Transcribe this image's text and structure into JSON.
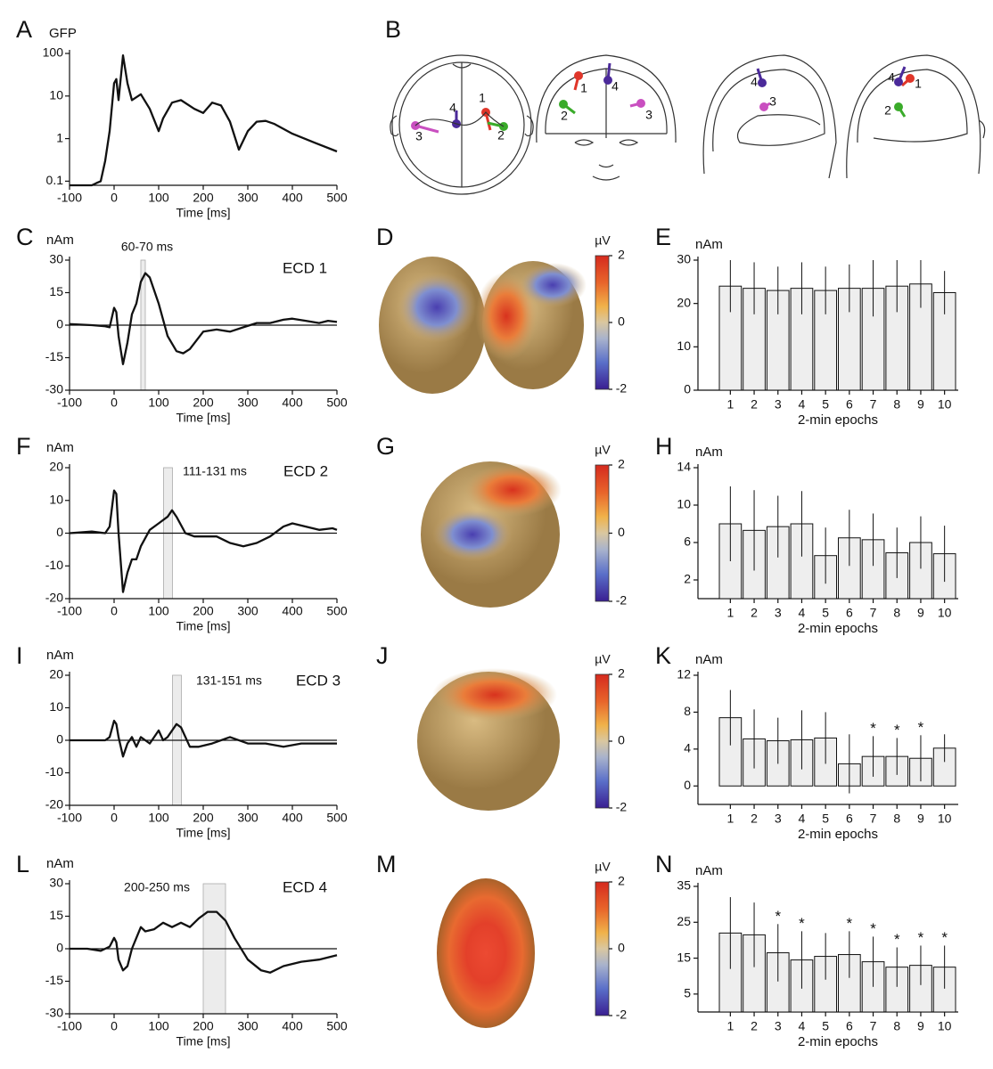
{
  "panel_b": {
    "panel": "B",
    "views": [
      {
        "labels": [
          "1",
          "2",
          "3",
          "4"
        ]
      },
      {
        "labels": [
          "1",
          "2",
          "3",
          "4"
        ]
      },
      {
        "labels": [
          "3",
          "4"
        ]
      },
      {
        "labels": [
          "1",
          "2",
          "4"
        ]
      }
    ]
  },
  "chart_data": [
    {
      "panel": "A",
      "type": "line",
      "ylabel": "GFP",
      "xlabel": "Time [ms]",
      "yscale": "log",
      "color": "#111111",
      "xlim": [
        -100,
        500
      ],
      "xticks": [
        -100,
        0,
        100,
        200,
        300,
        400,
        500
      ],
      "ylim": [
        0.08,
        100
      ],
      "yticks": [
        0.1,
        1,
        10,
        100
      ],
      "x": [
        -100,
        -50,
        -40,
        -30,
        -20,
        -10,
        0,
        5,
        10,
        20,
        30,
        40,
        60,
        80,
        100,
        110,
        130,
        150,
        180,
        200,
        220,
        240,
        260,
        280,
        300,
        320,
        340,
        360,
        400,
        450,
        500
      ],
      "values": [
        0.08,
        0.08,
        0.09,
        0.1,
        0.3,
        1.5,
        20,
        25,
        8,
        90,
        20,
        8,
        11,
        5,
        1.5,
        3,
        7,
        8,
        5,
        4,
        7,
        6,
        2.5,
        0.55,
        1.5,
        2.5,
        2.6,
        2.2,
        1.3,
        0.8,
        0.5
      ]
    },
    {
      "panel": "C",
      "type": "line",
      "ylabel": "nAm",
      "xlabel": "Time [ms]",
      "color": "#111111",
      "label": "ECD 1",
      "window": [
        60,
        70
      ],
      "window_label": "60-70 ms",
      "xlim": [
        -100,
        500
      ],
      "xticks": [
        -100,
        0,
        100,
        200,
        300,
        400,
        500
      ],
      "ylim": [
        -30,
        30
      ],
      "yticks": [
        -30,
        -15,
        0,
        15,
        30
      ],
      "x": [
        -100,
        -50,
        -20,
        -10,
        0,
        5,
        10,
        20,
        30,
        40,
        50,
        60,
        70,
        80,
        100,
        120,
        140,
        155,
        170,
        200,
        230,
        260,
        290,
        320,
        350,
        380,
        400,
        430,
        460,
        480,
        500
      ],
      "values": [
        0.5,
        0,
        -0.5,
        -1,
        8,
        6,
        -5,
        -18,
        -8,
        5,
        10,
        20,
        24,
        22,
        10,
        -5,
        -12,
        -13,
        -11,
        -3,
        -2,
        -3,
        -1,
        1,
        1,
        2.5,
        3,
        2,
        1,
        2,
        1.5
      ]
    },
    {
      "panel": "D",
      "type": "topomap",
      "unit": "µV",
      "clim": [
        -2,
        2
      ],
      "ticks": [
        2,
        0,
        -2
      ]
    },
    {
      "panel": "E",
      "type": "bar",
      "ylabel": "nAm",
      "xlabel": "2-min epochs",
      "color": "#eeeeee",
      "ylim": [
        0,
        30
      ],
      "yticks": [
        0,
        10,
        20,
        30
      ],
      "categories": [
        "1",
        "2",
        "3",
        "4",
        "5",
        "6",
        "7",
        "8",
        "9",
        "10"
      ],
      "values": [
        24,
        23.5,
        23,
        23.5,
        23,
        23.5,
        23.5,
        24,
        24.5,
        22.5
      ],
      "errors": [
        6,
        6,
        5.5,
        6,
        5.5,
        5.5,
        6.5,
        6,
        5.5,
        5
      ]
    },
    {
      "panel": "F",
      "type": "line",
      "ylabel": "nAm",
      "xlabel": "Time [ms]",
      "color": "#111111",
      "label": "ECD 2",
      "window": [
        111,
        131
      ],
      "window_label": "111-131 ms",
      "xlim": [
        -100,
        500
      ],
      "xticks": [
        -100,
        0,
        100,
        200,
        300,
        400,
        500
      ],
      "ylim": [
        -20,
        20
      ],
      "yticks": [
        -20,
        -10,
        0,
        10,
        20
      ],
      "x": [
        -100,
        -50,
        -20,
        -10,
        0,
        5,
        10,
        20,
        30,
        40,
        50,
        60,
        80,
        100,
        120,
        130,
        140,
        160,
        180,
        200,
        230,
        260,
        290,
        320,
        350,
        380,
        400,
        430,
        460,
        490,
        500
      ],
      "values": [
        0,
        0.5,
        0,
        2,
        13,
        12,
        0,
        -18,
        -12,
        -8,
        -8,
        -4,
        1,
        3,
        5,
        7,
        5,
        0,
        -1,
        -1,
        -1,
        -3,
        -4,
        -3,
        -1,
        2,
        3,
        2,
        1,
        1.5,
        1
      ]
    },
    {
      "panel": "G",
      "type": "topomap",
      "unit": "µV",
      "clim": [
        -2,
        2
      ],
      "ticks": [
        2,
        0,
        -2
      ]
    },
    {
      "panel": "H",
      "type": "bar",
      "ylabel": "nAm",
      "xlabel": "2-min epochs",
      "color": "#eeeeee",
      "ylim": [
        0,
        14
      ],
      "yticks": [
        2,
        6,
        10,
        14
      ],
      "categories": [
        "1",
        "2",
        "3",
        "4",
        "5",
        "6",
        "7",
        "8",
        "9",
        "10"
      ],
      "values": [
        8,
        7.3,
        7.7,
        8,
        4.6,
        6.5,
        6.3,
        4.9,
        6,
        4.8
      ],
      "errors": [
        4,
        4.3,
        3.3,
        3.5,
        3,
        3,
        2.8,
        2.7,
        2.8,
        3
      ]
    },
    {
      "panel": "I",
      "type": "line",
      "ylabel": "nAm",
      "xlabel": "Time [ms]",
      "color": "#111111",
      "label": "ECD 3",
      "window": [
        131,
        151
      ],
      "window_label": "131-151 ms",
      "xlim": [
        -100,
        500
      ],
      "xticks": [
        -100,
        0,
        100,
        200,
        300,
        400,
        500
      ],
      "ylim": [
        -20,
        20
      ],
      "yticks": [
        -20,
        -10,
        0,
        10,
        20
      ],
      "x": [
        -100,
        -50,
        -20,
        -10,
        0,
        5,
        10,
        20,
        30,
        40,
        50,
        60,
        70,
        80,
        100,
        110,
        120,
        140,
        150,
        170,
        190,
        220,
        260,
        300,
        340,
        380,
        420,
        460,
        500
      ],
      "values": [
        0,
        0,
        0,
        1,
        6,
        5,
        1,
        -5,
        -1,
        1,
        -2,
        1,
        0,
        -1,
        3,
        0,
        1,
        5,
        4,
        -2,
        -2,
        -1,
        1,
        -1,
        -1,
        -2,
        -1,
        -1,
        -1
      ]
    },
    {
      "panel": "J",
      "type": "topomap",
      "unit": "µV",
      "clim": [
        -2,
        2
      ],
      "ticks": [
        2,
        0,
        -2
      ]
    },
    {
      "panel": "K",
      "type": "bar",
      "ylabel": "nAm",
      "xlabel": "2-min epochs",
      "color": "#eeeeee",
      "ylim": [
        -2,
        12
      ],
      "yticks": [
        0,
        4,
        8,
        12
      ],
      "categories": [
        "1",
        "2",
        "3",
        "4",
        "5",
        "6",
        "7",
        "8",
        "9",
        "10"
      ],
      "values": [
        7.4,
        5.1,
        4.9,
        5,
        5.2,
        2.4,
        3.2,
        3.2,
        3,
        4.1
      ],
      "errors": [
        3,
        3.2,
        2.5,
        3.2,
        2.8,
        3.2,
        2.2,
        2,
        2.5,
        1.5
      ],
      "annotations": [
        {
          "category": "7",
          "text": "*"
        },
        {
          "category": "8",
          "text": "*"
        },
        {
          "category": "9",
          "text": "*"
        }
      ]
    },
    {
      "panel": "L",
      "type": "line",
      "ylabel": "nAm",
      "xlabel": "Time [ms]",
      "color": "#111111",
      "label": "ECD 4",
      "window": [
        200,
        250
      ],
      "window_label": "200-250 ms",
      "xlim": [
        -100,
        500
      ],
      "xticks": [
        -100,
        0,
        100,
        200,
        300,
        400,
        500
      ],
      "ylim": [
        -30,
        30
      ],
      "yticks": [
        -30,
        -15,
        0,
        15,
        30
      ],
      "x": [
        -100,
        -60,
        -30,
        -10,
        0,
        5,
        10,
        20,
        30,
        40,
        50,
        60,
        70,
        90,
        110,
        130,
        150,
        170,
        190,
        210,
        230,
        250,
        270,
        300,
        330,
        350,
        380,
        420,
        460,
        500
      ],
      "values": [
        0,
        0,
        -1,
        1,
        5,
        3,
        -5,
        -10,
        -8,
        0,
        5,
        10,
        8,
        9,
        12,
        10,
        12,
        10,
        14,
        17,
        17,
        13,
        5,
        -5,
        -10,
        -11,
        -8,
        -6,
        -5,
        -3
      ]
    },
    {
      "panel": "M",
      "type": "topomap",
      "unit": "µV",
      "clim": [
        -2,
        2
      ],
      "ticks": [
        2,
        0,
        -2
      ]
    },
    {
      "panel": "N",
      "type": "bar",
      "ylabel": "nAm",
      "xlabel": "2-min epochs",
      "color": "#eeeeee",
      "ylim": [
        0,
        35
      ],
      "yticks": [
        5,
        15,
        25,
        35
      ],
      "categories": [
        "1",
        "2",
        "3",
        "4",
        "5",
        "6",
        "7",
        "8",
        "9",
        "10"
      ],
      "values": [
        22,
        21.5,
        16.5,
        14.5,
        15.5,
        16,
        14,
        12.5,
        13,
        12.5
      ],
      "errors": [
        10,
        9,
        8,
        8,
        6.5,
        6.5,
        7,
        5.5,
        5.5,
        6
      ],
      "annotations": [
        {
          "category": "3",
          "text": "*"
        },
        {
          "category": "4",
          "text": "*"
        },
        {
          "category": "6",
          "text": "*"
        },
        {
          "category": "7",
          "text": "*"
        },
        {
          "category": "8",
          "text": "*"
        },
        {
          "category": "9",
          "text": "*"
        },
        {
          "category": "10",
          "text": "*"
        }
      ]
    }
  ]
}
